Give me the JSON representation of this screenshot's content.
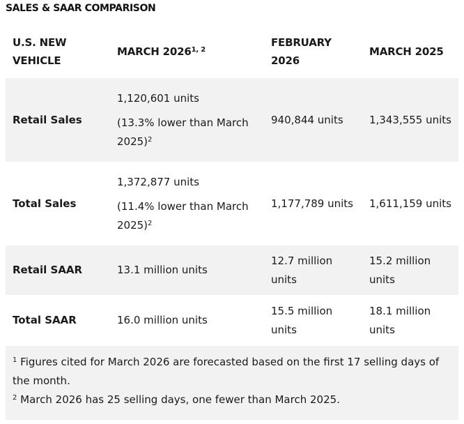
{
  "title": "SALES & SAAR COMPARISON",
  "header": {
    "col0": "U.S. NEW VEHICLE",
    "col1": "MARCH 2026",
    "col1_sup": "1, 2",
    "col2": "FEBRUARY 2026",
    "col3": "MARCH 2025"
  },
  "rows": [
    {
      "label": "Retail Sales",
      "march2026_value": "1,120,601 units",
      "march2026_note": "(13.3% lower than March 2025)",
      "march2026_sup": "2",
      "feb2026": "940,844 units",
      "march2025": "1,343,555 units"
    },
    {
      "label": "Total Sales",
      "march2026_value": "1,372,877 units",
      "march2026_note": "(11.4% lower than March 2025)",
      "march2026_sup": "2",
      "feb2026": "1,177,789 units",
      "march2025": "1,611,159 units"
    },
    {
      "label": "Retail SAAR",
      "march2026_value": "13.1 million units",
      "feb2026": "12.7 million units",
      "march2025": "15.2 million units"
    },
    {
      "label": "Total SAAR",
      "march2026_value": "16.0 million units",
      "feb2026": "15.5 million units",
      "march2025": "18.1 million units"
    }
  ],
  "footnotes": [
    {
      "marker": "1",
      "text": "Figures cited for March 2026 are forecasted based on the first 17 selling days of the month."
    },
    {
      "marker": "2",
      "text": "March 2026 has 25 selling days, one fewer than March 2025."
    }
  ]
}
